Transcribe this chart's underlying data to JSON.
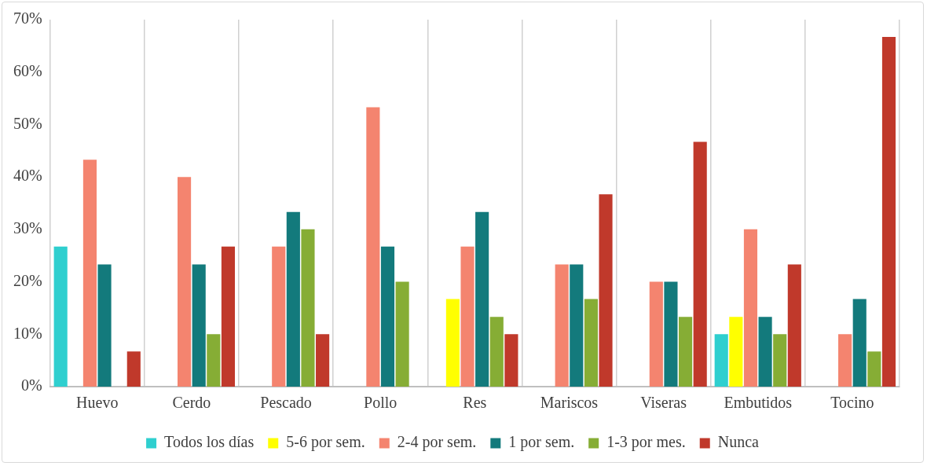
{
  "chart_data": {
    "type": "bar",
    "categories": [
      "Huevo",
      "Cerdo",
      "Pescado",
      "Pollo",
      "Res",
      "Mariscos",
      "Viseras",
      "Embutidos",
      "Tocino"
    ],
    "series": [
      {
        "name": "Todos los días",
        "color": "#2fcfcf",
        "values": [
          26.7,
          0,
          0,
          0,
          0,
          0,
          0,
          10,
          0
        ]
      },
      {
        "name": "5-6 por sem.",
        "color": "#ffff00",
        "values": [
          0,
          0,
          0,
          0,
          16.7,
          0,
          0,
          13.3,
          0
        ]
      },
      {
        "name": "2-4 por sem.",
        "color": "#f4846f",
        "values": [
          43.3,
          40,
          26.7,
          53.3,
          26.7,
          23.3,
          20,
          30,
          10
        ]
      },
      {
        "name": "1 por sem.",
        "color": "#137a7c",
        "values": [
          23.3,
          23.3,
          33.3,
          26.7,
          33.3,
          23.3,
          20,
          13.3,
          16.7
        ]
      },
      {
        "name": "1-3 por mes.",
        "color": "#86ad35",
        "values": [
          0,
          10,
          30,
          20,
          13.3,
          16.7,
          13.3,
          10,
          6.7
        ]
      },
      {
        "name": "Nunca",
        "color": "#c0392b",
        "values": [
          6.7,
          26.7,
          10,
          0,
          10,
          36.7,
          46.7,
          23.3,
          66.7
        ]
      }
    ],
    "ylim": [
      0,
      70
    ],
    "yticks": [
      {
        "value": 0,
        "label": "0%"
      },
      {
        "value": 10,
        "label": "10%"
      },
      {
        "value": 20,
        "label": "20%"
      },
      {
        "value": 30,
        "label": "30%"
      },
      {
        "value": 40,
        "label": "40%"
      },
      {
        "value": 50,
        "label": "50%"
      },
      {
        "value": 60,
        "label": "60%"
      },
      {
        "value": 70,
        "label": "70%"
      }
    ],
    "grid": "x",
    "legend": "bottom"
  }
}
